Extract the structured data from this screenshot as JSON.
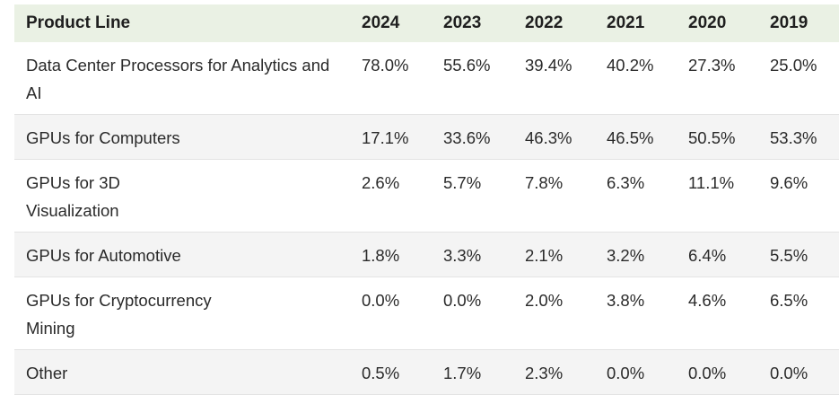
{
  "table": {
    "headers": [
      "Product Line",
      "2024",
      "2023",
      "2022",
      "2021",
      "2020",
      "2019"
    ],
    "rows": [
      {
        "name": "Data Center Processors for Analytics and AI",
        "values": [
          "78.0%",
          "55.6%",
          "39.4%",
          "40.2%",
          "27.3%",
          "25.0%"
        ]
      },
      {
        "name": "GPUs for Computers",
        "values": [
          "17.1%",
          "33.6%",
          "46.3%",
          "46.5%",
          "50.5%",
          "53.3%"
        ]
      },
      {
        "name": "GPUs for 3D Visualization",
        "values": [
          "2.6%",
          "5.7%",
          "7.8%",
          "6.3%",
          "11.1%",
          "9.6%"
        ]
      },
      {
        "name": "GPUs for Automotive",
        "values": [
          "1.8%",
          "3.3%",
          "2.1%",
          "3.2%",
          "6.4%",
          "5.5%"
        ]
      },
      {
        "name": "GPUs for Cryptocurrency Mining",
        "values": [
          "0.0%",
          "0.0%",
          "2.0%",
          "3.8%",
          "4.6%",
          "6.5%"
        ]
      },
      {
        "name": "Other",
        "values": [
          "0.5%",
          "1.7%",
          "2.3%",
          "0.0%",
          "0.0%",
          "0.0%"
        ]
      }
    ]
  },
  "colors": {
    "header_bg": "#eaf1e4",
    "row_alt_bg": "#f4f4f4",
    "border": "#e3e3e3"
  }
}
